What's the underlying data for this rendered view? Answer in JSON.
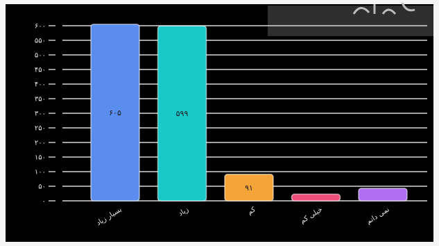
{
  "chart_data": {
    "type": "bar",
    "categories": [
      "بسیار زیاد",
      "زیاد",
      "کم",
      "خیلی کم",
      "نمی دانم"
    ],
    "values": [
      605,
      599,
      91,
      23,
      43
    ],
    "data_labels": [
      "۶۰۵",
      "۵۹۹",
      "۹۱",
      "",
      ""
    ],
    "y_ticks": [
      0,
      50,
      100,
      150,
      200,
      250,
      300,
      350,
      400,
      450,
      500,
      550,
      600
    ],
    "y_tick_labels": [
      "۰",
      "۵۰",
      "۱۰۰",
      "۱۵۰",
      "۲۰۰",
      "۲۵۰",
      "۳۰۰",
      "۳۵۰",
      "۴۰۰",
      "۴۵۰",
      "۵۰۰",
      "۵۵۰",
      "۶۰۰"
    ],
    "ylim": [
      0,
      610
    ],
    "grid": true,
    "legend": "none",
    "colors": [
      "#5b8def",
      "#19c9c9",
      "#f5a43a",
      "#f04e7a",
      "#b06ef2"
    ],
    "background": "#000000",
    "axis_text_color": "#e8e8e8"
  }
}
